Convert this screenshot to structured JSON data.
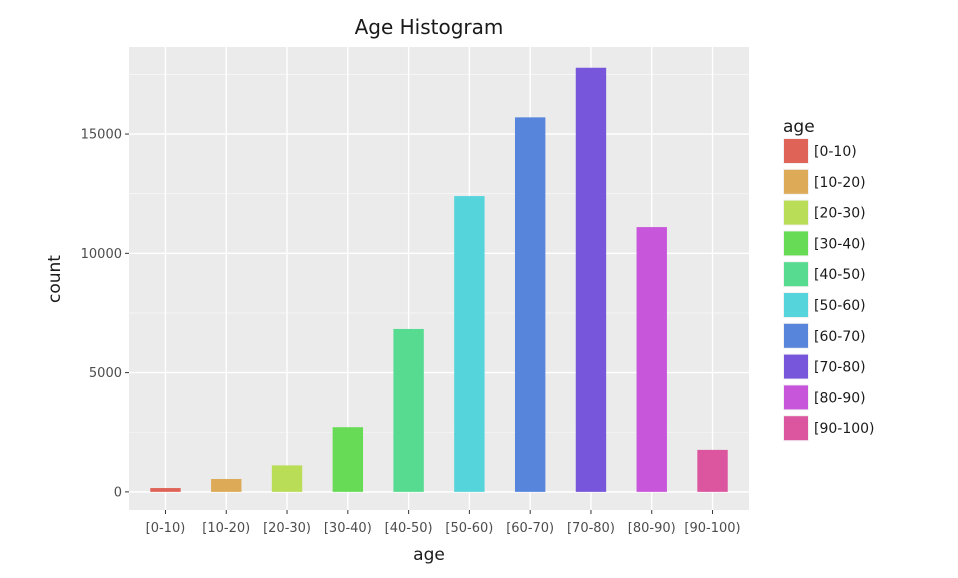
{
  "chart_data": {
    "type": "bar",
    "title": "Age Histogram",
    "xlabel": "age",
    "ylabel": "count",
    "categories": [
      "[0-10)",
      "[10-20)",
      "[20-30)",
      "[30-40)",
      "[40-50)",
      "[50-60)",
      "[60-70)",
      "[70-80)",
      "[80-90)",
      "[90-100)"
    ],
    "values": [
      160,
      540,
      1110,
      2710,
      6830,
      12400,
      15700,
      17780,
      11100,
      1760
    ],
    "colors": [
      "#e06358",
      "#ddaa57",
      "#b9dd57",
      "#67db56",
      "#56db91",
      "#56d4db",
      "#5685db",
      "#7756db",
      "#c856db",
      "#db569f"
    ],
    "ylim": [
      -760,
      18650
    ],
    "yticks": [
      0,
      5000,
      10000,
      15000
    ],
    "ytick_labels": [
      "0",
      "5000",
      "10000",
      "15000"
    ],
    "grid": true,
    "legend": {
      "title": "age",
      "position": "right",
      "labels": [
        "[0-10)",
        "[10-20)",
        "[20-30)",
        "[30-40)",
        "[40-50)",
        "[50-60)",
        "[60-70)",
        "[70-80)",
        "[80-90)",
        "[90-100)"
      ]
    }
  }
}
